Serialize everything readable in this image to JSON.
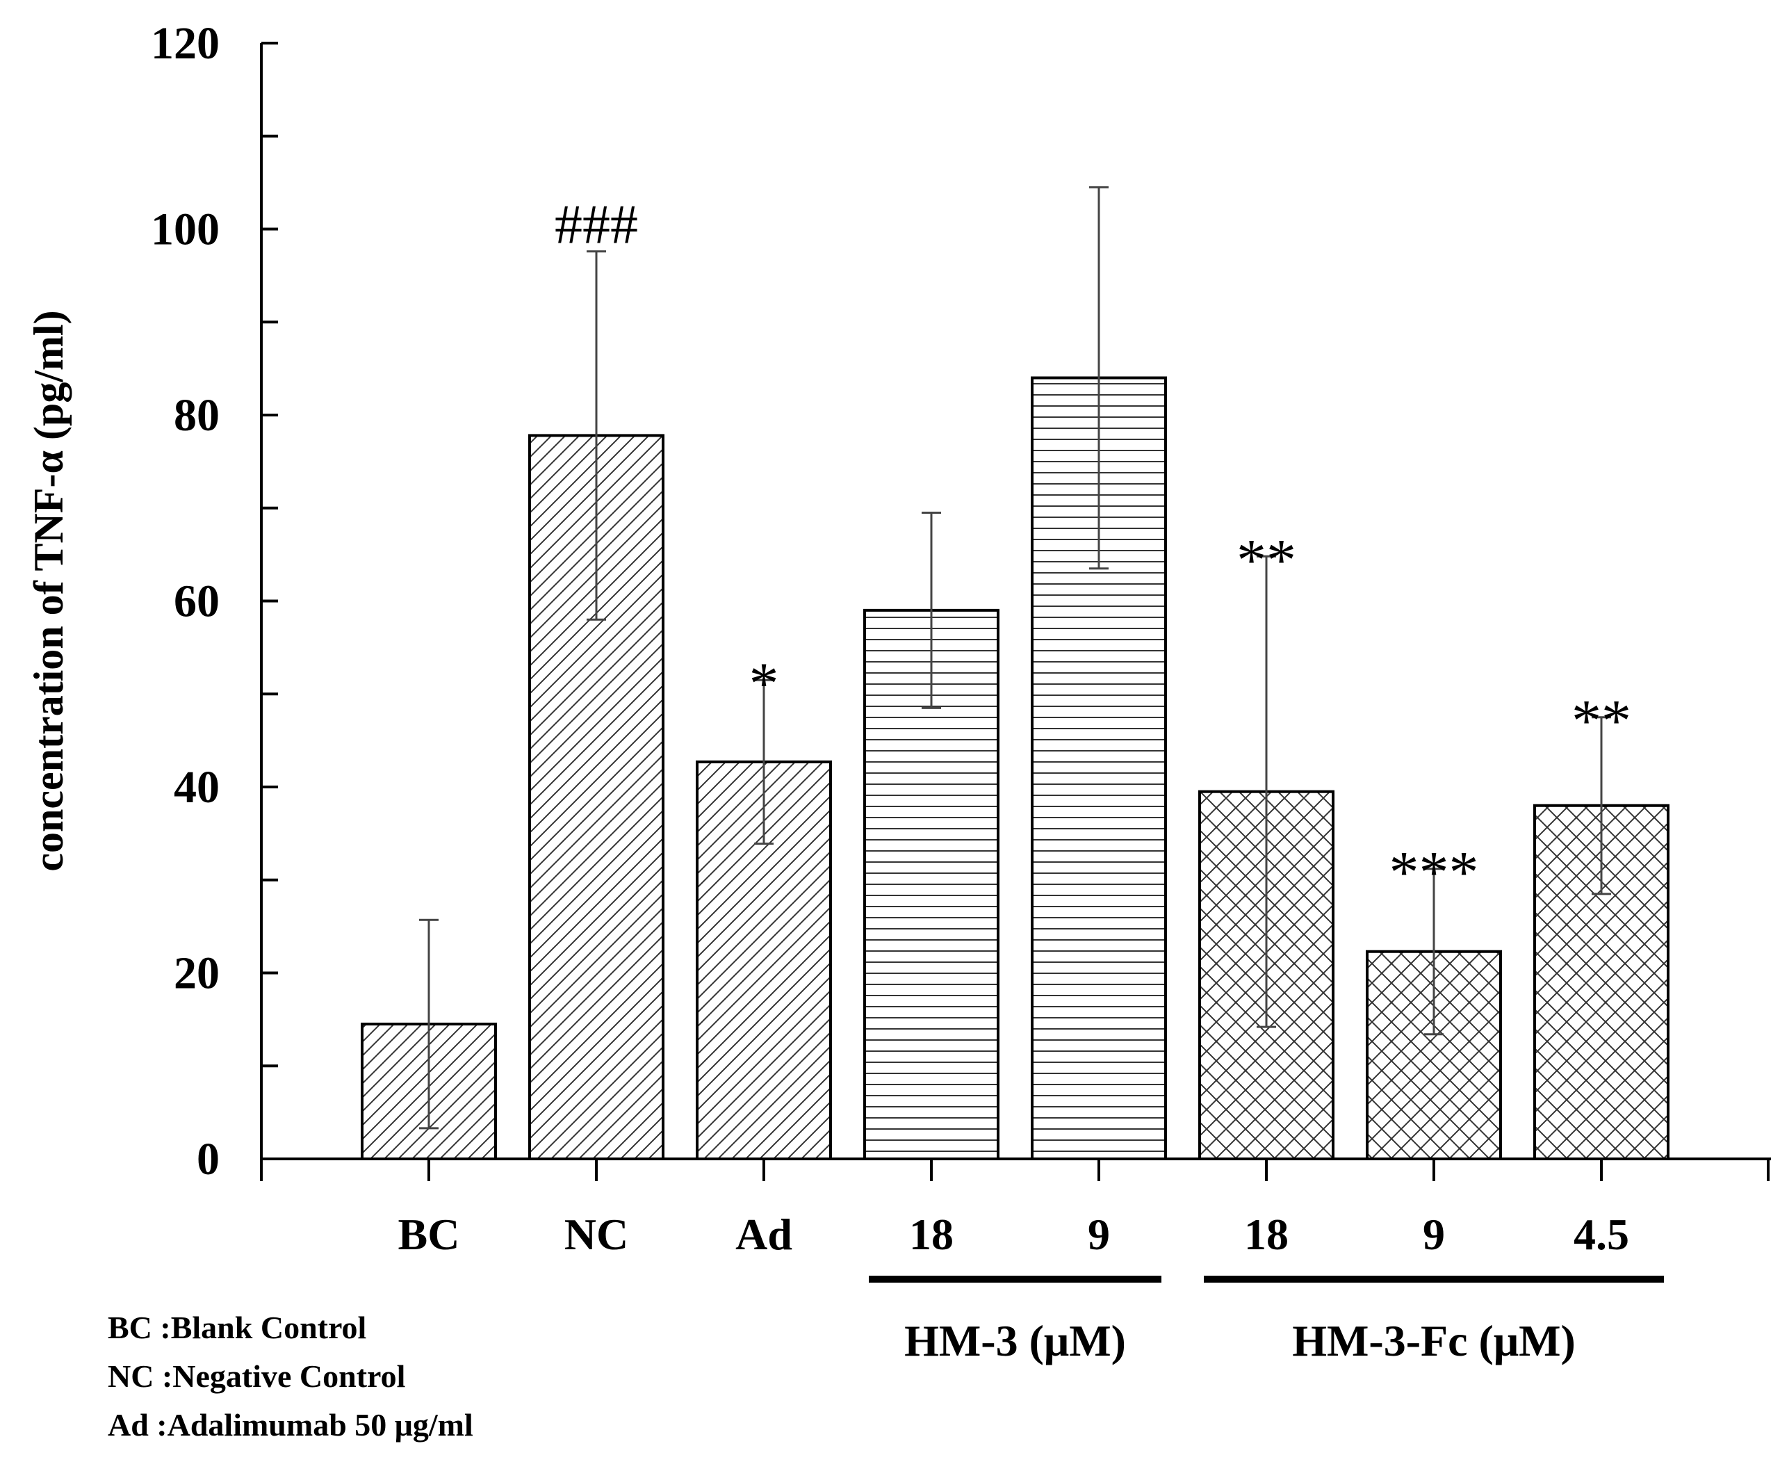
{
  "chart_data": {
    "type": "bar",
    "ylabel": "concentration of TNF-α (pg/ml)",
    "ylim": [
      0,
      120
    ],
    "yticks": [
      0,
      20,
      40,
      60,
      80,
      100,
      120
    ],
    "categories": [
      "BC",
      "NC",
      "Ad",
      "18",
      "9",
      "18",
      "9",
      "4.5"
    ],
    "values": [
      14.5,
      77.8,
      42.7,
      59.0,
      84.0,
      39.5,
      22.3,
      38.0
    ],
    "errors": [
      11.2,
      19.8,
      8.8,
      10.5,
      20.5,
      25.3,
      8.9,
      9.5
    ],
    "patterns": [
      "diag",
      "diag",
      "diag",
      "horiz",
      "horiz",
      "cross",
      "cross",
      "cross"
    ],
    "annotations": [
      "",
      "###",
      "*",
      "",
      "",
      "**",
      "***",
      "**"
    ],
    "groups": [
      {
        "label": "HM-3 (μM)",
        "from": 3,
        "to": 4
      },
      {
        "label": "HM-3-Fc (μM)",
        "from": 5,
        "to": 7
      }
    ],
    "legend": [
      "BC :Blank Control",
      "NC :Negative Control",
      "Ad :Adalimumab 50 μg/ml"
    ]
  }
}
